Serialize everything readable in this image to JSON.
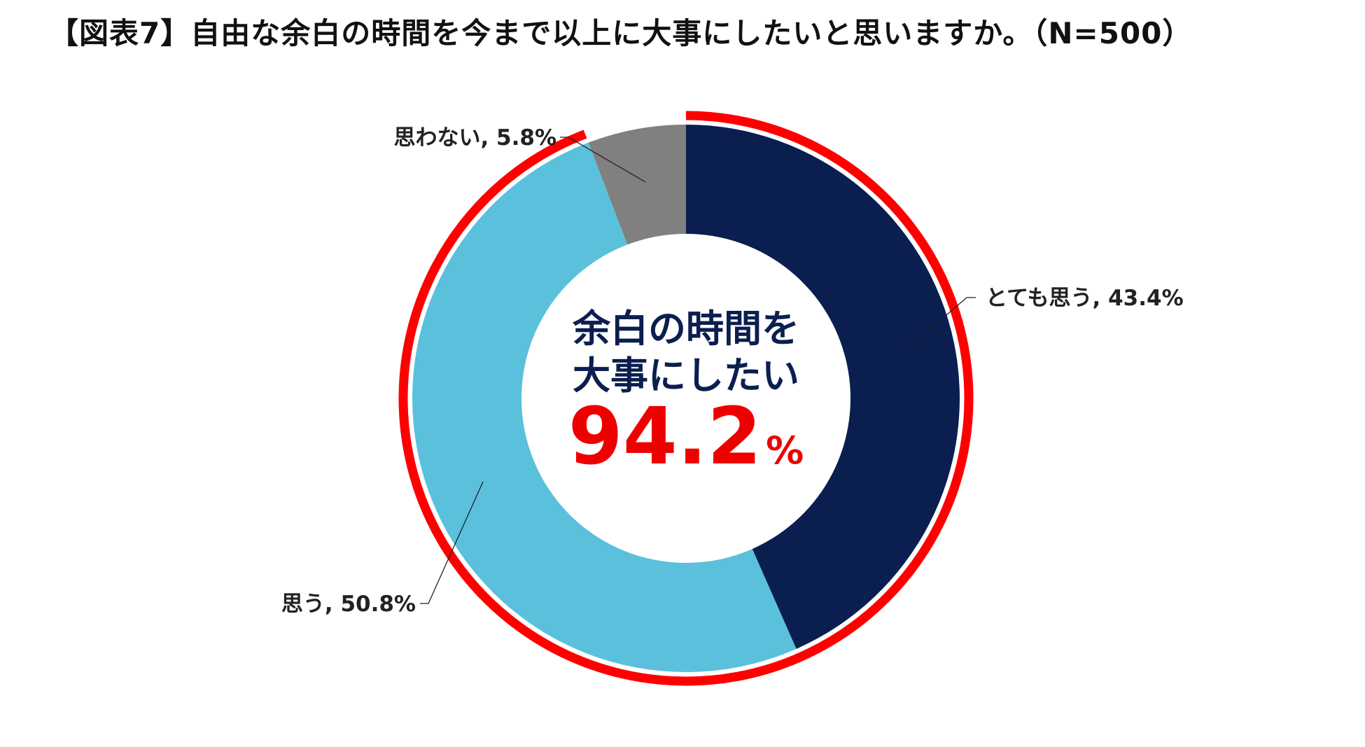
{
  "chart_data": {
    "type": "pie",
    "variant": "donut",
    "title": "【図表7】自由な余白の時間を今まで以上に大事にしたいと思いますか。（N=500）",
    "categories": [
      "とても思う",
      "思う",
      "思わない"
    ],
    "values": [
      43.4,
      50.8,
      5.8
    ],
    "unit": "%",
    "colors": [
      "#0a1f4f",
      "#5bc0dc",
      "#808080"
    ],
    "highlight": {
      "color": "#ff0000",
      "categories": [
        "とても思う",
        "思う"
      ]
    },
    "data_labels": [
      "とても思う, 43.4%",
      "思う, 50.8%",
      "思わない, 5.8%"
    ],
    "center_text": {
      "line1": "余白の時間を",
      "line2": "大事にしたい",
      "value": "94.2",
      "unit": "%"
    },
    "legend": "none"
  }
}
